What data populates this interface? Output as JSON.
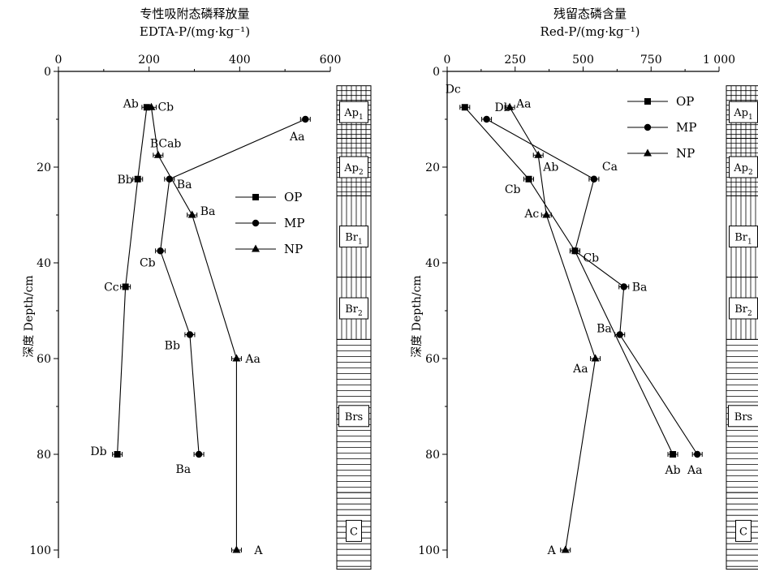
{
  "chart_data": [
    {
      "type": "line",
      "title": "专性吸附态磷释放量",
      "subtitle": "EDTA-P/(mg·kg⁻¹)",
      "ylabel": "深度 Depth/cm",
      "xlim": [
        0,
        600
      ],
      "ylim": [
        0,
        100
      ],
      "xticks": [
        "0",
        "200",
        "400",
        "600"
      ],
      "yticks": [
        "0",
        "20",
        "40",
        "60",
        "80",
        "100"
      ],
      "legend": [
        "OP",
        "MP",
        "NP"
      ],
      "series": [
        {
          "name": "OP",
          "marker": "square",
          "points": [
            {
              "x": 195,
              "y": 7.5,
              "label": "Ab"
            },
            {
              "x": 175,
              "y": 22.5,
              "label": "Bb"
            },
            {
              "x": 148,
              "y": 45,
              "label": "Cc"
            },
            {
              "x": 130,
              "y": 80,
              "label": "Db"
            }
          ]
        },
        {
          "name": "MP",
          "marker": "circle",
          "points": [
            {
              "x": 545,
              "y": 10,
              "label": "Aa"
            },
            {
              "x": 245,
              "y": 22.5,
              "label": "Ba"
            },
            {
              "x": 225,
              "y": 37.5,
              "label": "Cb"
            },
            {
              "x": 290,
              "y": 55,
              "label": "Bb"
            },
            {
              "x": 310,
              "y": 80,
              "label": "Ba"
            }
          ]
        },
        {
          "name": "NP",
          "marker": "triangle",
          "points": [
            {
              "x": 205,
              "y": 7.5,
              "label": "Cb"
            },
            {
              "x": 220,
              "y": 17.5,
              "label": "BCab"
            },
            {
              "x": 295,
              "y": 30,
              "label": "Ba"
            },
            {
              "x": 393,
              "y": 60,
              "label": "Aa"
            },
            {
              "x": 393,
              "y": 100,
              "label": "A"
            }
          ]
        }
      ]
    },
    {
      "type": "line",
      "title": "残留态磷含量",
      "subtitle": "Red-P/(mg·kg⁻¹)",
      "ylabel": "深度 Depth/cm",
      "xlim": [
        0,
        1000
      ],
      "ylim": [
        0,
        100
      ],
      "xticks": [
        "0",
        "250",
        "500",
        "750",
        "1 000"
      ],
      "yticks": [
        "0",
        "20",
        "40",
        "60",
        "80",
        "100"
      ],
      "legend": [
        "OP",
        "MP",
        "NP"
      ],
      "series": [
        {
          "name": "OP",
          "marker": "square",
          "points": [
            {
              "x": 65,
              "y": 7.5,
              "label": "Dc"
            },
            {
              "x": 300,
              "y": 22.5,
              "label": "Cb"
            },
            {
              "x": 470,
              "y": 37.5,
              "label": "Cb"
            },
            {
              "x": 830,
              "y": 80,
              "label": "Ab"
            }
          ]
        },
        {
          "name": "MP",
          "marker": "circle",
          "points": [
            {
              "x": 145,
              "y": 10,
              "label": "Db"
            },
            {
              "x": 540,
              "y": 22.5,
              "label": "Ca"
            },
            {
              "x": 470,
              "y": 37.5,
              "label": ""
            },
            {
              "x": 650,
              "y": 45,
              "label": "Ba"
            },
            {
              "x": 635,
              "y": 55,
              "label": "Ba"
            },
            {
              "x": 920,
              "y": 80,
              "label": "Aa"
            }
          ]
        },
        {
          "name": "NP",
          "marker": "triangle",
          "points": [
            {
              "x": 230,
              "y": 7.5,
              "label": "Aa"
            },
            {
              "x": 335,
              "y": 17.5,
              "label": "Ab"
            },
            {
              "x": 365,
              "y": 30,
              "label": "Ac"
            },
            {
              "x": 545,
              "y": 60,
              "label": "Aa"
            },
            {
              "x": 435,
              "y": 100,
              "label": "A"
            }
          ]
        }
      ]
    }
  ],
  "profiles": [
    {
      "horizons": [
        {
          "name": "Ap",
          "sub": "1",
          "top": 3,
          "bottom": 14,
          "pattern": "grid"
        },
        {
          "name": "Ap",
          "sub": "2",
          "top": 14,
          "bottom": 26,
          "pattern": "grid"
        },
        {
          "name": "Br",
          "sub": "1",
          "top": 26,
          "bottom": 43,
          "pattern": "vert"
        },
        {
          "name": "Br",
          "sub": "2",
          "top": 43,
          "bottom": 56,
          "pattern": "vert"
        },
        {
          "name": "Brs",
          "sub": "",
          "top": 56,
          "bottom": 88,
          "pattern": "horiz"
        },
        {
          "name": "C",
          "sub": "",
          "top": 88,
          "bottom": 104,
          "pattern": "horiz"
        }
      ]
    },
    {
      "horizons": [
        {
          "name": "Ap",
          "sub": "1",
          "top": 3,
          "bottom": 14,
          "pattern": "grid"
        },
        {
          "name": "Ap",
          "sub": "2",
          "top": 14,
          "bottom": 26,
          "pattern": "grid"
        },
        {
          "name": "Br",
          "sub": "1",
          "top": 26,
          "bottom": 43,
          "pattern": "vert"
        },
        {
          "name": "Br",
          "sub": "2",
          "top": 43,
          "bottom": 56,
          "pattern": "vert"
        },
        {
          "name": "Brs",
          "sub": "",
          "top": 56,
          "bottom": 88,
          "pattern": "horiz"
        },
        {
          "name": "C",
          "sub": "",
          "top": 88,
          "bottom": 104,
          "pattern": "horiz"
        }
      ]
    }
  ]
}
